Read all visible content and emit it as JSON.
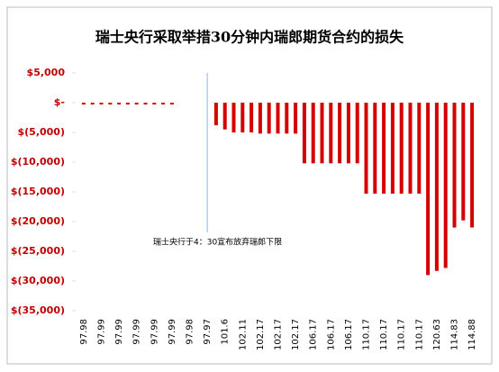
{
  "chart_data": {
    "type": "bar",
    "title": "瑞士央行采取举措30分钟内瑞郎期货合约的损失",
    "annotation": "瑞士央行于4：30宣布放弃瑞郎下限",
    "categories": [
      "97.98",
      null,
      "97.99",
      null,
      "97.99",
      null,
      "97.99",
      null,
      "97.99",
      null,
      "97.99",
      null,
      "97.98",
      null,
      "97.97",
      null,
      "101.6",
      null,
      "102.11",
      null,
      "102.17",
      null,
      "102.17",
      null,
      "102.17",
      null,
      "106.17",
      null,
      "106.17",
      null,
      "106.17",
      null,
      "110.17",
      null,
      "110.17",
      null,
      "110.17",
      null,
      "110.17",
      null,
      "120.63",
      null,
      "114.83",
      null,
      "114.88"
    ],
    "values": [
      -300,
      -300,
      -300,
      -300,
      -300,
      -300,
      -300,
      -300,
      -300,
      -300,
      -300,
      0,
      0,
      0,
      0,
      -3800,
      -4500,
      -5000,
      -5000,
      -5000,
      -5200,
      -5200,
      -5200,
      -5200,
      -5200,
      -10200,
      -10200,
      -10200,
      -10200,
      -10200,
      -10200,
      -10200,
      -15300,
      -15300,
      -15300,
      -15300,
      -15300,
      -15300,
      -15300,
      -29000,
      -28300,
      -27800,
      -21000,
      -19800,
      -21000
    ],
    "color": "#d40000",
    "annotation_index": 14,
    "ylim": [
      -35000,
      5000
    ],
    "yticks": [
      {
        "value": 5000,
        "label": "$5,000"
      },
      {
        "value": 0,
        "label": "$-"
      },
      {
        "value": -5000,
        "label": "$(5,000)"
      },
      {
        "value": -10000,
        "label": "$(10,000)"
      },
      {
        "value": -15000,
        "label": "$(15,000)"
      },
      {
        "value": -20000,
        "label": "$(20,000)"
      },
      {
        "value": -25000,
        "label": "$(25,000)"
      },
      {
        "value": -30000,
        "label": "$(30,000)"
      },
      {
        "value": -35000,
        "label": "$(35,000)"
      }
    ]
  }
}
